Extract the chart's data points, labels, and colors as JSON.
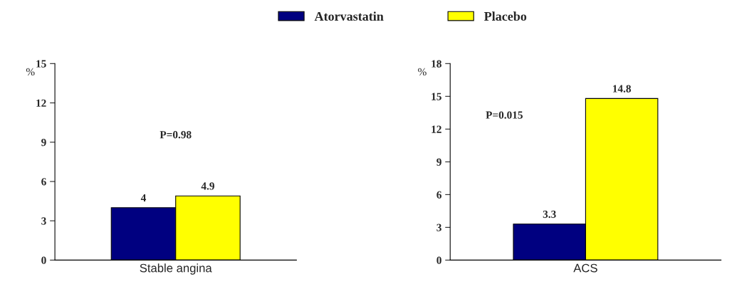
{
  "chart_data": [
    {
      "type": "bar",
      "categories": [
        "Stable angina"
      ],
      "ylabel": "%",
      "ylim": [
        0,
        15
      ],
      "yticks": [
        0,
        3,
        6,
        9,
        12,
        15
      ],
      "data_labels": true,
      "legend": "top",
      "grid": false,
      "annotations": [
        "P=0.98"
      ],
      "series": [
        {
          "name": "Atorvastatin",
          "color": "#000080",
          "values": [
            4
          ]
        },
        {
          "name": "Placebo",
          "color": "#ffff00",
          "values": [
            4.9
          ]
        }
      ]
    },
    {
      "type": "bar",
      "categories": [
        "ACS"
      ],
      "ylabel": "%",
      "ylim": [
        0,
        18
      ],
      "yticks": [
        0,
        3,
        6,
        9,
        12,
        15,
        18
      ],
      "data_labels": true,
      "grid": false,
      "annotations": [
        "P=0.015"
      ],
      "series": [
        {
          "color": "#000080",
          "values": [
            3.3
          ]
        },
        {
          "color": "#ffff00",
          "values": [
            14.8
          ]
        }
      ]
    }
  ]
}
